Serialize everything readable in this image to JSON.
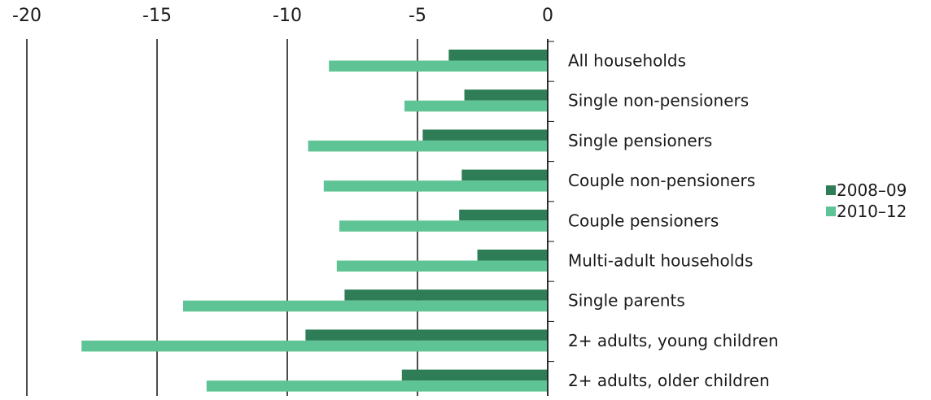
{
  "chart_data": {
    "type": "bar",
    "orientation": "horizontal",
    "title": "",
    "xlabel": "",
    "ylabel": "",
    "xlim": [
      -20,
      0
    ],
    "x_ticks": [
      -20,
      -15,
      -10,
      -5,
      0
    ],
    "x_tick_labels": [
      "-20",
      "-15",
      "-10",
      "-5",
      "0"
    ],
    "x_axis_position": "top",
    "grid": "vertical",
    "legend_position": "right",
    "categories": [
      "All households",
      "Single non-pensioners",
      "Single pensioners",
      "Couple non-pensioners",
      "Couple pensioners",
      "Multi-adult households",
      "Single parents",
      "2+ adults, young children",
      "2+ adults, older children"
    ],
    "series": [
      {
        "name": "2008–09",
        "color": "#2e7d57",
        "values": [
          -3.8,
          -3.2,
          -4.8,
          -3.3,
          -3.4,
          -2.7,
          -7.8,
          -9.3,
          -5.6
        ]
      },
      {
        "name": "2010–12",
        "color": "#5ec495",
        "values": [
          -8.4,
          -5.5,
          -9.2,
          -8.6,
          -8.0,
          -8.1,
          -14.0,
          -17.9,
          -13.1
        ]
      }
    ]
  }
}
